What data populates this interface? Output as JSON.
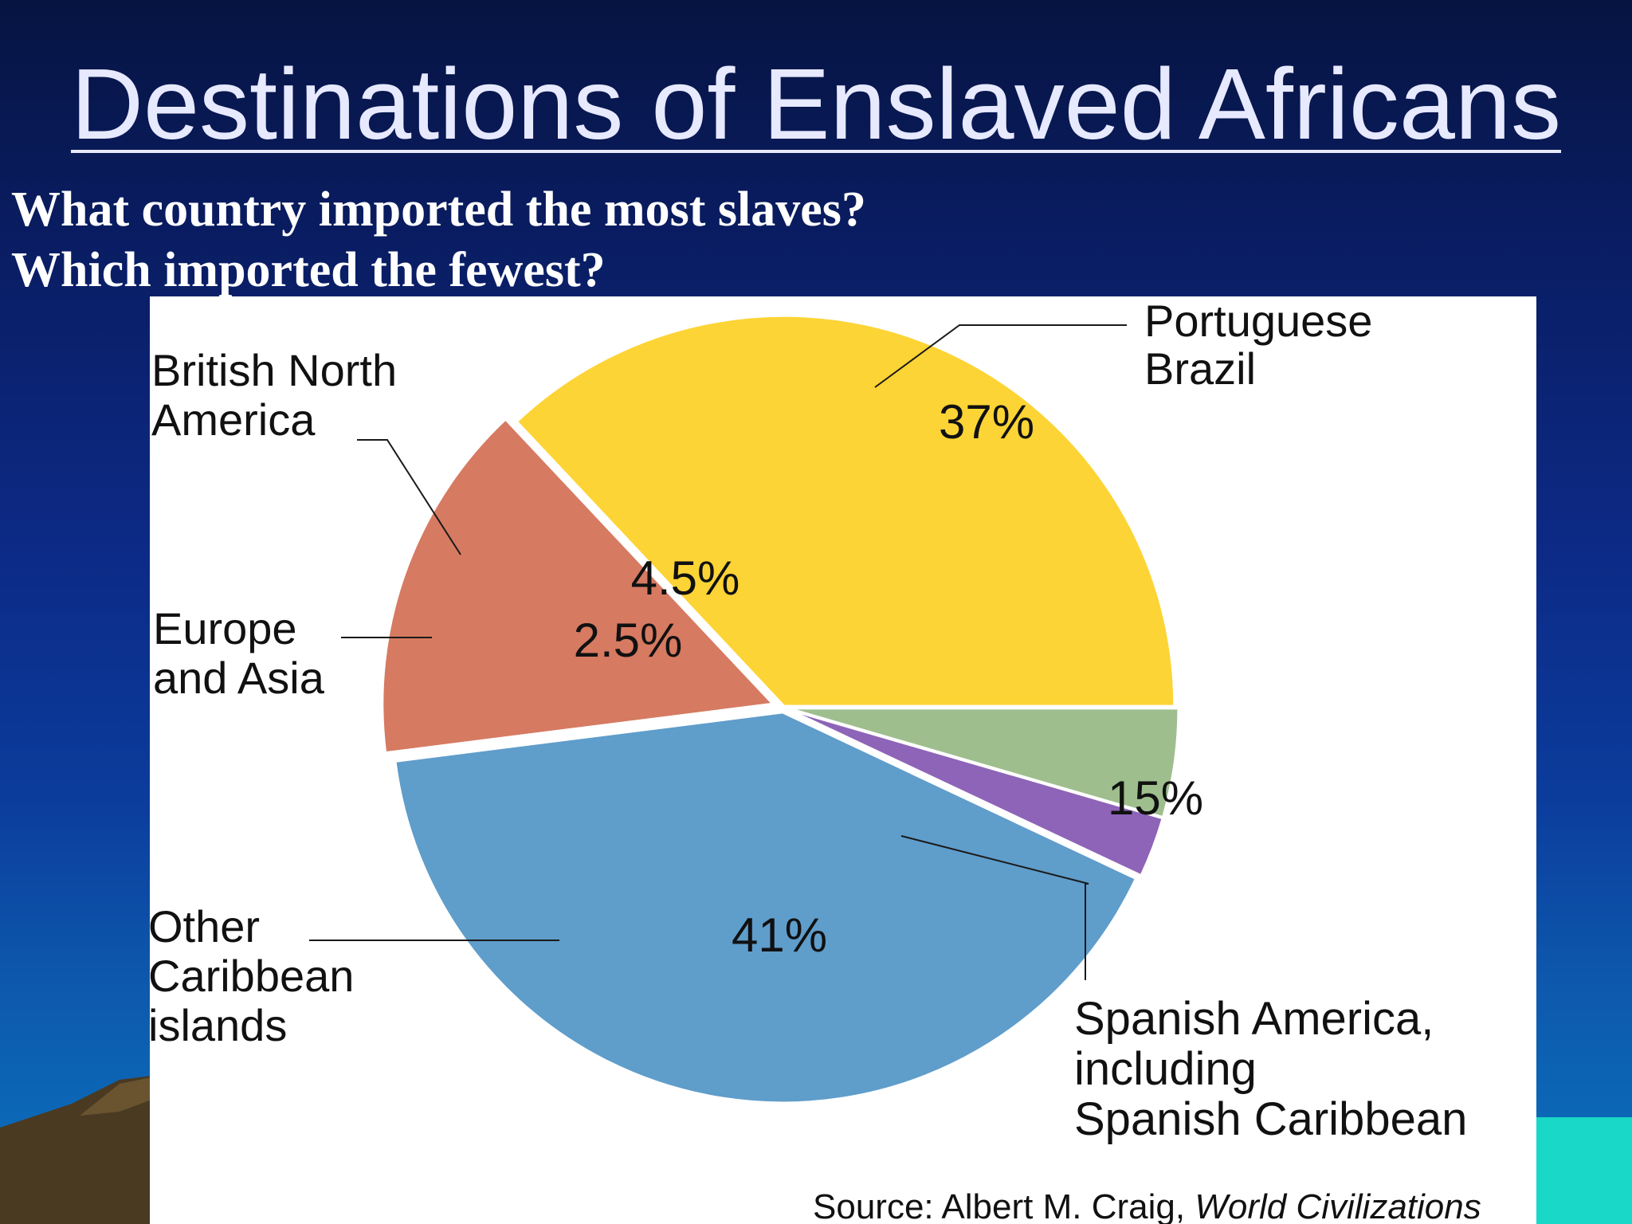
{
  "slide": {
    "title": "Destinations of Enslaved Africans",
    "question_1": "What country imported the most slaves?",
    "question_2": "Which imported the fewest?",
    "source_text": "Source: Albert M. Craig,",
    "source_book": "World Civilizations"
  },
  "colors": {
    "portuguese_brazil": "#FDD435",
    "spanish_america": "#D67A62",
    "other_caribbean": "#5F9DCB",
    "europe_asia": "#8E64B8",
    "british_north_america": "#9FBE8E"
  },
  "chart_data": {
    "type": "pie",
    "title": "",
    "slices": [
      {
        "label": [
          "Portuguese",
          "Brazil"
        ],
        "value": 37,
        "value_label": "37%",
        "color": "#FDD435"
      },
      {
        "label": [
          "Spanish America,",
          "including",
          "Spanish Caribbean"
        ],
        "value": 15,
        "value_label": "15%",
        "color": "#D67A62"
      },
      {
        "label": [
          "Other",
          "Caribbean",
          "islands"
        ],
        "value": 41,
        "value_label": "41%",
        "color": "#5F9DCB"
      },
      {
        "label": [
          "Europe",
          "and Asia"
        ],
        "value": 2.5,
        "value_label": "2.5%",
        "color": "#8E64B8"
      },
      {
        "label": [
          "British North",
          "America"
        ],
        "value": 4.5,
        "value_label": "4.5%",
        "color": "#9FBE8E"
      }
    ]
  }
}
